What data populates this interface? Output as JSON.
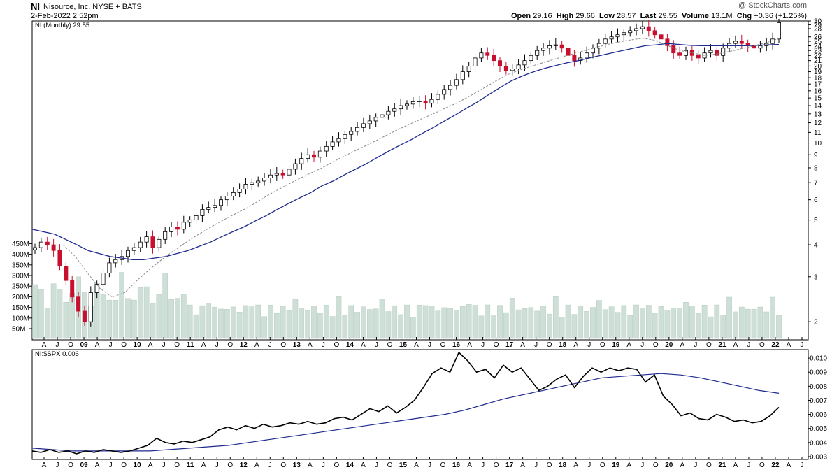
{
  "header": {
    "ticker": "NI",
    "company": "Nisource, Inc.  NYSE + BATS",
    "datetime": "2-Feb-2022 2:52pm",
    "watermark": "@ StockCharts.com",
    "open_label": "Open",
    "open": "29.16",
    "high_label": "High",
    "high": "29.66",
    "low_label": "Low",
    "low": "28.57",
    "last_label": "Last",
    "last": "29.55",
    "volume_label": "Volume",
    "volume": "13.1M",
    "chg_label": "Chg",
    "chg": "+0.36 (+1.25%)"
  },
  "chart_data": [
    {
      "type": "candlestick",
      "legend": "NI (Monthly) 29.55",
      "scale": "log",
      "yticks": [
        2,
        3,
        4,
        5,
        6,
        7,
        8,
        9,
        10,
        11,
        12,
        13,
        14,
        15,
        16,
        17,
        18,
        19,
        20,
        21,
        22,
        23,
        24,
        25,
        26,
        28,
        29,
        30
      ],
      "ylim": [
        1.7,
        30
      ],
      "volume_ticks": [
        "50M",
        "100M",
        "150M",
        "200M",
        "250M",
        "300M",
        "350M",
        "400M",
        "450M"
      ],
      "x_ticks": [
        "A",
        "J",
        "O",
        "09",
        "A",
        "J",
        "O",
        "10",
        "A",
        "J",
        "O",
        "11",
        "A",
        "J",
        "O",
        "12",
        "A",
        "J",
        "O",
        "13",
        "A",
        "J",
        "O",
        "14",
        "A",
        "J",
        "O",
        "15",
        "A",
        "J",
        "O",
        "16",
        "A",
        "J",
        "O",
        "17",
        "A",
        "J",
        "O",
        "18",
        "A",
        "J",
        "O",
        "19",
        "A",
        "J",
        "O",
        "20",
        "A",
        "J",
        "O",
        "21",
        "A",
        "J",
        "O",
        "22",
        "A",
        "J"
      ],
      "close_approx": [
        3.9,
        4.1,
        4.0,
        3.8,
        3.3,
        2.9,
        2.5,
        2.2,
        2.0,
        2.6,
        2.8,
        3.1,
        3.4,
        3.5,
        3.6,
        3.8,
        3.9,
        4.1,
        4.3,
        3.9,
        4.2,
        4.5,
        4.7,
        4.6,
        4.9,
        5.0,
        5.2,
        5.5,
        5.6,
        5.7,
        6.0,
        6.2,
        6.4,
        6.6,
        6.9,
        7.0,
        7.1,
        7.3,
        7.5,
        7.6,
        7.5,
        7.9,
        8.3,
        8.7,
        9.0,
        8.8,
        9.3,
        9.7,
        10.1,
        10.4,
        10.8,
        11.1,
        11.5,
        11.9,
        12.2,
        12.6,
        12.9,
        13.3,
        13.6,
        14.0,
        14.2,
        14.5,
        14.6,
        14.3,
        14.8,
        15.5,
        16.2,
        16.8,
        17.7,
        19.0,
        20.0,
        21.5,
        22.5,
        22.0,
        21.0,
        20.0,
        19.2,
        19.5,
        20.2,
        21.0,
        22.0,
        23.0,
        23.5,
        24.0,
        24.2,
        23.5,
        22.0,
        21.0,
        21.5,
        22.5,
        23.5,
        24.5,
        25.5,
        26.0,
        26.5,
        27.0,
        27.5,
        28.0,
        28.5,
        27.5,
        26.5,
        25.5,
        24.0,
        22.5,
        22.0,
        23.0,
        22.0,
        21.5,
        22.5,
        23.0,
        22.0,
        23.5,
        24.5,
        25.0,
        24.5,
        24.0,
        23.5,
        24.0,
        24.5,
        25.5,
        29.55
      ],
      "ma_long_approx": [
        4.6,
        4.5,
        4.4,
        4.2,
        4.0,
        3.8,
        3.7,
        3.6,
        3.55,
        3.5,
        3.5,
        3.55,
        3.6,
        3.7,
        3.8,
        3.95,
        4.1,
        4.3,
        4.5,
        4.7,
        4.95,
        5.2,
        5.5,
        5.8,
        6.1,
        6.4,
        6.8,
        7.1,
        7.5,
        7.9,
        8.3,
        8.8,
        9.3,
        9.8,
        10.3,
        10.9,
        11.5,
        12.2,
        12.9,
        13.7,
        14.5,
        15.5,
        16.5,
        17.5,
        18.3,
        19.0,
        19.6,
        20.1,
        20.6,
        21.0,
        21.5,
        22.0,
        22.5,
        23.0,
        23.5,
        24.0,
        24.2,
        24.5,
        24.3,
        24.1,
        24.0,
        24.0,
        24.0,
        24.0,
        24.0,
        24.1,
        24.2,
        24.3
      ],
      "ma_short_approx": [
        4.0,
        3.6,
        3.1,
        2.7,
        2.5,
        2.6,
        2.9,
        3.2,
        3.5,
        3.8,
        4.1,
        4.4,
        4.7,
        5.0,
        5.3,
        5.6,
        6.0,
        6.4,
        6.8,
        7.2,
        7.6,
        8.0,
        8.5,
        9.0,
        9.5,
        10.0,
        10.6,
        11.2,
        11.8,
        12.4,
        13.0,
        13.7,
        14.4,
        15.3,
        16.3,
        17.4,
        18.5,
        19.3,
        20.0,
        20.7,
        21.4,
        22.1,
        22.8,
        23.5,
        24.2,
        24.8,
        25.3,
        25.7,
        25.2,
        24.0,
        23.0,
        22.5,
        22.0,
        22.3,
        22.8,
        23.4,
        24.0,
        24.7,
        25.6
      ]
    },
    {
      "type": "line",
      "legend": "NI:$SPX 0.006",
      "yticks": [
        "0.010",
        "0.009",
        "0.008",
        "0.007",
        "0.006",
        "0.005",
        "0.004",
        "0.003"
      ],
      "ylim": [
        0.0028,
        0.0106
      ],
      "ratio_approx": [
        0.0034,
        0.0033,
        0.0035,
        0.0033,
        0.0034,
        0.0032,
        0.0034,
        0.0033,
        0.0035,
        0.0034,
        0.0033,
        0.0034,
        0.0036,
        0.0038,
        0.0043,
        0.004,
        0.0039,
        0.0041,
        0.004,
        0.0042,
        0.0044,
        0.0049,
        0.0051,
        0.0049,
        0.0052,
        0.005,
        0.0053,
        0.0051,
        0.0052,
        0.0054,
        0.0053,
        0.0055,
        0.0053,
        0.0054,
        0.0057,
        0.0058,
        0.0056,
        0.006,
        0.0064,
        0.0062,
        0.0066,
        0.0061,
        0.0065,
        0.007,
        0.0079,
        0.0089,
        0.0093,
        0.009,
        0.0104,
        0.0098,
        0.009,
        0.0092,
        0.0086,
        0.0095,
        0.009,
        0.0093,
        0.0085,
        0.0077,
        0.008,
        0.0085,
        0.0088,
        0.0079,
        0.0087,
        0.0093,
        0.009,
        0.0093,
        0.0091,
        0.0093,
        0.0092,
        0.0083,
        0.0088,
        0.0073,
        0.0067,
        0.0059,
        0.0061,
        0.0057,
        0.0056,
        0.006,
        0.0058,
        0.0055,
        0.0056,
        0.0054,
        0.0055,
        0.0059,
        0.0065
      ],
      "ma_approx": [
        0.0036,
        0.0035,
        0.0034,
        0.0034,
        0.0034,
        0.0034,
        0.0034,
        0.0035,
        0.0036,
        0.0037,
        0.0038,
        0.004,
        0.0042,
        0.0044,
        0.0046,
        0.0048,
        0.005,
        0.0052,
        0.0054,
        0.0056,
        0.0058,
        0.006,
        0.0063,
        0.0067,
        0.0071,
        0.0074,
        0.0077,
        0.008,
        0.0083,
        0.0086,
        0.0087,
        0.0088,
        0.0089,
        0.0088,
        0.0086,
        0.0083,
        0.008,
        0.0077,
        0.0075
      ]
    }
  ]
}
